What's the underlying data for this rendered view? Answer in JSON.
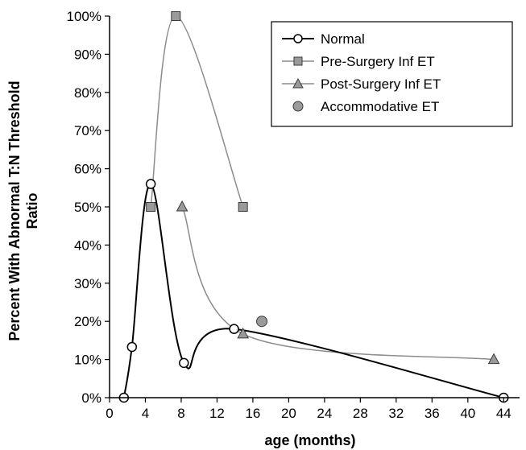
{
  "chart_data": {
    "type": "line",
    "xlabel": "age (months)",
    "ylabel_line1": "Percent With Abnormal T:N Threshold",
    "ylabel_line2": "Ratio",
    "xlim": [
      0,
      46
    ],
    "ylim": [
      0,
      100
    ],
    "x_ticks": [
      0,
      4,
      8,
      12,
      16,
      20,
      24,
      28,
      32,
      36,
      40,
      44
    ],
    "x_tick_labels": [
      "0",
      "4",
      "8",
      "12",
      "16",
      "20",
      "24",
      "28",
      "32",
      "36",
      "40",
      "44"
    ],
    "y_ticks": [
      0,
      10,
      20,
      30,
      40,
      50,
      60,
      70,
      80,
      90,
      100
    ],
    "y_tick_labels": [
      "0%",
      "10%",
      "20%",
      "30%",
      "40%",
      "50%",
      "60%",
      "70%",
      "80%",
      "90%",
      "100%"
    ],
    "grid": false,
    "legend_position": "top-right",
    "series": [
      {
        "name": "Normal",
        "marker": "circle-open",
        "line_color": "#000000",
        "marker_fill": "#ffffff",
        "marker_stroke": "#000000",
        "points": [
          [
            1.6,
            0
          ],
          [
            2.5,
            13.3
          ],
          [
            4.6,
            56
          ],
          [
            8.3,
            9.1
          ],
          [
            13.9,
            18
          ],
          [
            44,
            0
          ]
        ]
      },
      {
        "name": "Pre-Surgery Inf ET",
        "marker": "square",
        "line_color": "#8c8c8c",
        "marker_fill": "#9a9a9a",
        "marker_stroke": "#3a3a3a",
        "points": [
          [
            4.6,
            50
          ],
          [
            7.4,
            100
          ],
          [
            14.9,
            50
          ]
        ]
      },
      {
        "name": "Post-Surgery Inf ET",
        "marker": "triangle",
        "line_color": "#8c8c8c",
        "marker_fill": "#9a9a9a",
        "marker_stroke": "#3a3a3a",
        "points": [
          [
            8.1,
            50
          ],
          [
            14.9,
            16.7
          ],
          [
            42.9,
            10
          ]
        ]
      },
      {
        "name": "Accommodative ET",
        "marker": "circle",
        "line_color": "none",
        "marker_fill": "#9a9a9a",
        "marker_stroke": "#3a3a3a",
        "points": [
          [
            17,
            20
          ]
        ]
      }
    ]
  }
}
